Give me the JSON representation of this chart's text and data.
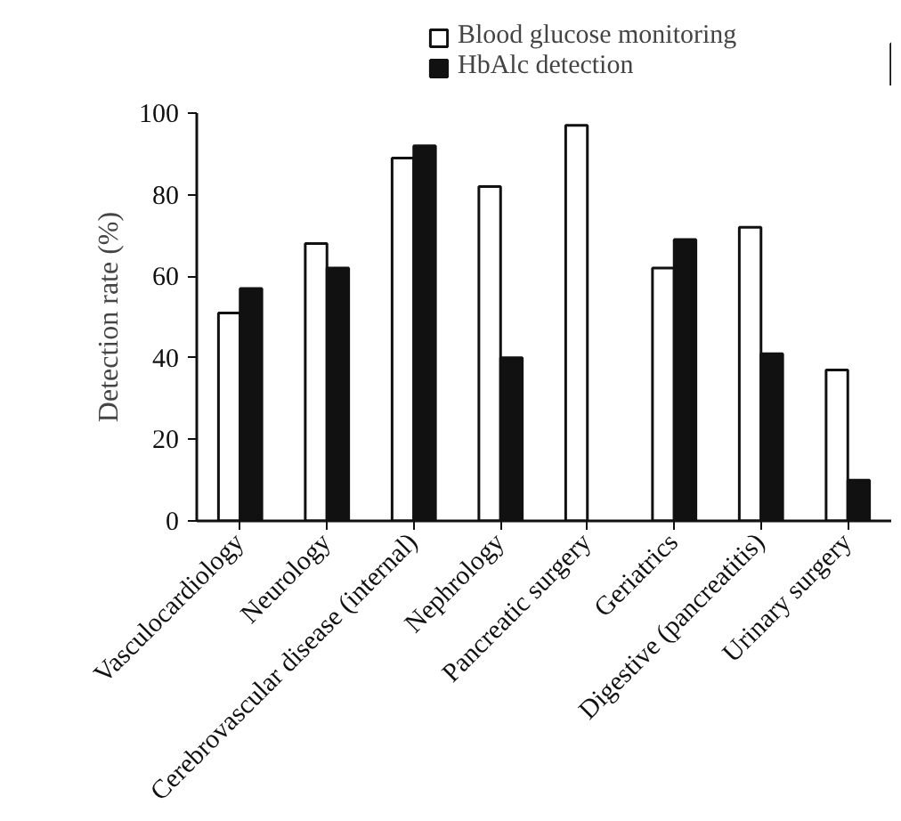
{
  "chart_data": {
    "type": "bar",
    "ylabel": "Detection rate (%)",
    "categories": [
      "Vasculocardiology",
      "Neurology",
      "Cerebrovascular disease (internal)",
      "Nephrology",
      "Pancreatic surgery",
      "Geriatrics",
      "Digestive (pancreatitis)",
      "Urinary surgery"
    ],
    "series": [
      {
        "name": "Blood glucose monitoring",
        "color": "#ffffff",
        "values": [
          51,
          68,
          89,
          82,
          97,
          62,
          72,
          37
        ]
      },
      {
        "name": "HbAlc detection",
        "color": "#111111",
        "values": [
          57,
          62,
          92,
          40,
          null,
          69,
          41,
          10
        ]
      }
    ],
    "ylim": [
      0,
      100
    ],
    "yticks": [
      0,
      20,
      40,
      60,
      80,
      100
    ],
    "grid": false,
    "legend": "top"
  }
}
